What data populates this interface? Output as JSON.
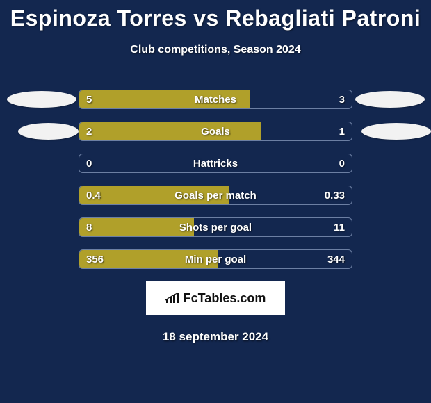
{
  "title": "Espinoza Torres vs Rebagliati Patroni",
  "subtitle": "Club competitions, Season 2024",
  "date": "18 september 2024",
  "logo_text": "FcTables.com",
  "colors": {
    "background": "#13274f",
    "bar_fill": "#b0a02a",
    "bar_border": "#6c7fa3",
    "text": "#ffffff",
    "logo_bg": "#ffffff",
    "logo_text": "#111111",
    "avatar_bg": "#f2f2f2"
  },
  "stats": [
    {
      "label": "Matches",
      "left_value": "5",
      "right_value": "3",
      "left_pct": 62.5
    },
    {
      "label": "Goals",
      "left_value": "2",
      "right_value": "1",
      "left_pct": 66.7
    },
    {
      "label": "Hattricks",
      "left_value": "0",
      "right_value": "0",
      "left_pct": 0
    },
    {
      "label": "Goals per match",
      "left_value": "0.4",
      "right_value": "0.33",
      "left_pct": 54.8
    },
    {
      "label": "Shots per goal",
      "left_value": "8",
      "right_value": "11",
      "left_pct": 42.1
    },
    {
      "label": "Min per goal",
      "left_value": "356",
      "right_value": "344",
      "left_pct": 50.8
    }
  ]
}
